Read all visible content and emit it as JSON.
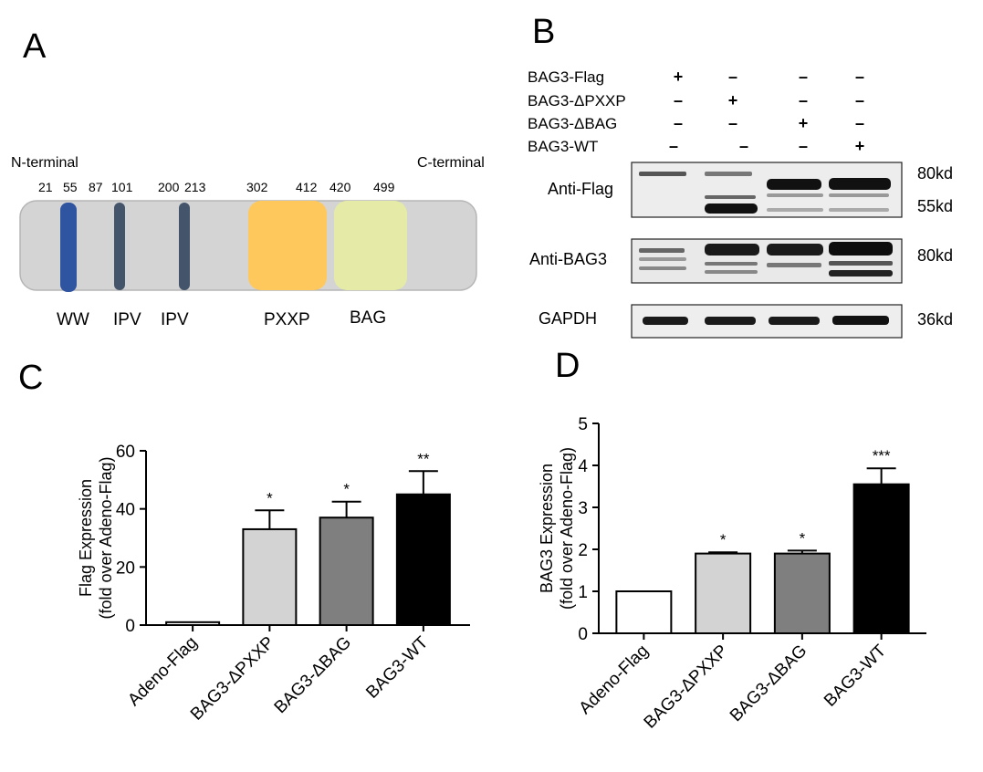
{
  "panelA": {
    "letter": "A",
    "n_label": "N-terminal",
    "c_label": "C-terminal",
    "positions": [
      "21",
      "55",
      "87",
      "101",
      "200",
      "213",
      "302",
      "412",
      "420",
      "499"
    ],
    "domains": [
      "WW",
      "IPV",
      "IPV",
      "PXXP",
      "BAG"
    ],
    "colors": {
      "ww": "#2f54a0",
      "ipv": "#44546a",
      "pxxp": "#ffc85c",
      "bag": "#e5eba6",
      "bar": "#d4d4d4"
    }
  },
  "panelB": {
    "letter": "B",
    "conditions": [
      {
        "label": "BAG3-Flag",
        "marks": [
          "+",
          "–",
          "–",
          "–"
        ]
      },
      {
        "label": "BAG3-ΔPXXP",
        "marks": [
          "–",
          "+",
          "–",
          "–"
        ]
      },
      {
        "label": "BAG3-ΔBAG",
        "marks": [
          "–",
          "–",
          "+",
          "–"
        ]
      },
      {
        "label": "BAG3-WT",
        "marks": [
          "–",
          "–",
          "–",
          "+"
        ]
      }
    ],
    "blots": [
      {
        "name": "Anti-Flag",
        "mw": [
          "80kd",
          "55kd"
        ]
      },
      {
        "name": "Anti-BAG3",
        "mw": [
          "80kd"
        ]
      },
      {
        "name": "GAPDH",
        "mw": [
          "36kd"
        ]
      }
    ]
  },
  "chart_data": [
    {
      "panel": "C",
      "type": "bar",
      "categories": [
        "Adeno-Flag",
        "BAG3-ΔPXXP",
        "BAG3-ΔBAG",
        "BAG3-WT"
      ],
      "values": [
        1,
        33,
        37,
        45
      ],
      "errors": [
        0,
        6.5,
        5.5,
        8
      ],
      "significance": [
        "",
        "*",
        "*",
        "**"
      ],
      "colors": [
        "#ffffff",
        "#d3d3d3",
        "#7f7f7f",
        "#000000"
      ],
      "ylabel_lines": [
        "Flag Expression",
        "(fold over Adeno-Flag)"
      ],
      "ylim": [
        0,
        60
      ],
      "yticks": [
        "0",
        "20",
        "40",
        "60"
      ]
    },
    {
      "panel": "D",
      "type": "bar",
      "categories": [
        "Adeno-Flag",
        "BAG3-ΔPXXP",
        "BAG3-ΔBAG",
        "BAG3-WT"
      ],
      "values": [
        1,
        1.9,
        1.9,
        3.55
      ],
      "errors": [
        0,
        0.03,
        0.07,
        0.38
      ],
      "significance": [
        "",
        "*",
        "*",
        "***"
      ],
      "colors": [
        "#ffffff",
        "#d3d3d3",
        "#7f7f7f",
        "#000000"
      ],
      "ylabel_lines": [
        "BAG3 Expression",
        "(fold over Adeno-Flag)"
      ],
      "ylim": [
        0,
        5
      ],
      "yticks": [
        "0",
        "1",
        "2",
        "3",
        "4",
        "5"
      ]
    }
  ]
}
